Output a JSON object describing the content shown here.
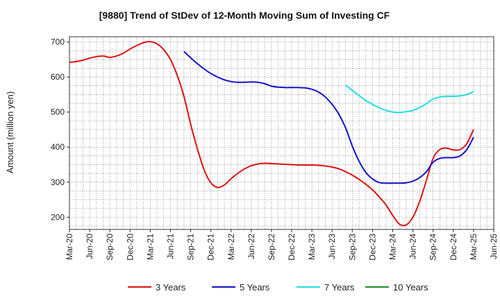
{
  "chart_data": {
    "type": "line",
    "title": "[9880]  Trend of StDev of 12-Month Moving Sum of Investing CF",
    "ylabel": "Amount (million yen)",
    "xlabel": "",
    "ylim": [
      165,
      715
    ],
    "yticks": [
      200,
      300,
      400,
      500,
      600,
      700
    ],
    "x_tick_labels": [
      "Mar-20",
      "Jun-20",
      "Sep-20",
      "Dec-20",
      "Mar-21",
      "Jun-21",
      "Sep-21",
      "Dec-21",
      "Mar-22",
      "Jun-22",
      "Sep-22",
      "Dec-22",
      "Mar-23",
      "Jun-23",
      "Sep-23",
      "Dec-23",
      "Mar-24",
      "Jun-24",
      "Sep-24",
      "Dec-24",
      "Mar-25",
      "Jun-25"
    ],
    "grid": true,
    "legend_position": "bottom",
    "series": [
      {
        "name": "3 Years",
        "color": "#dd1111",
        "points": [
          [
            "Mar-20",
            642
          ],
          [
            "Apr-20",
            644
          ],
          [
            "May-20",
            648
          ],
          [
            "Jun-20",
            654
          ],
          [
            "Jul-20",
            658
          ],
          [
            "Aug-20",
            660
          ],
          [
            "Sep-20",
            656
          ],
          [
            "Oct-20",
            660
          ],
          [
            "Nov-20",
            668
          ],
          [
            "Dec-20",
            680
          ],
          [
            "Jan-21",
            690
          ],
          [
            "Feb-21",
            698
          ],
          [
            "Mar-21",
            701
          ],
          [
            "Apr-21",
            695
          ],
          [
            "May-21",
            678
          ],
          [
            "Jun-21",
            650
          ],
          [
            "Jul-21",
            605
          ],
          [
            "Aug-21",
            545
          ],
          [
            "Sep-21",
            465
          ],
          [
            "Oct-21",
            395
          ],
          [
            "Nov-21",
            335
          ],
          [
            "Dec-21",
            298
          ],
          [
            "Jan-22",
            285
          ],
          [
            "Feb-22",
            292
          ],
          [
            "Mar-22",
            310
          ],
          [
            "Apr-22",
            325
          ],
          [
            "May-22",
            338
          ],
          [
            "Jun-22",
            347
          ],
          [
            "Jul-22",
            352
          ],
          [
            "Aug-22",
            354
          ],
          [
            "Sep-22",
            353
          ],
          [
            "Oct-22",
            352
          ],
          [
            "Nov-22",
            351
          ],
          [
            "Dec-22",
            350
          ],
          [
            "Jan-23",
            349
          ],
          [
            "Feb-23",
            349
          ],
          [
            "Mar-23",
            349
          ],
          [
            "Apr-23",
            348
          ],
          [
            "May-23",
            346
          ],
          [
            "Jun-23",
            343
          ],
          [
            "Jul-23",
            338
          ],
          [
            "Aug-23",
            330
          ],
          [
            "Sep-23",
            320
          ],
          [
            "Oct-23",
            308
          ],
          [
            "Nov-23",
            294
          ],
          [
            "Dec-23",
            278
          ],
          [
            "Jan-24",
            258
          ],
          [
            "Feb-24",
            235
          ],
          [
            "Mar-24",
            205
          ],
          [
            "Apr-24",
            180
          ],
          [
            "May-24",
            178
          ],
          [
            "Jun-24",
            200
          ],
          [
            "Jul-24",
            245
          ],
          [
            "Aug-24",
            305
          ],
          [
            "Sep-24",
            368
          ],
          [
            "Oct-24",
            393
          ],
          [
            "Nov-24",
            397
          ],
          [
            "Dec-24",
            392
          ],
          [
            "Jan-25",
            393
          ],
          [
            "Feb-25",
            410
          ],
          [
            "Mar-25",
            450
          ]
        ]
      },
      {
        "name": "5 Years",
        "color": "#1111cc",
        "points": [
          [
            "Aug-21",
            673
          ],
          [
            "Sep-21",
            655
          ],
          [
            "Oct-21",
            638
          ],
          [
            "Nov-21",
            623
          ],
          [
            "Dec-21",
            610
          ],
          [
            "Jan-22",
            600
          ],
          [
            "Feb-22",
            592
          ],
          [
            "Mar-22",
            587
          ],
          [
            "Apr-22",
            585
          ],
          [
            "May-22",
            585
          ],
          [
            "Jun-22",
            586
          ],
          [
            "Jul-22",
            585
          ],
          [
            "Aug-22",
            581
          ],
          [
            "Sep-22",
            574
          ],
          [
            "Oct-22",
            571
          ],
          [
            "Nov-22",
            570
          ],
          [
            "Dec-22",
            570
          ],
          [
            "Jan-23",
            570
          ],
          [
            "Feb-23",
            569
          ],
          [
            "Mar-23",
            565
          ],
          [
            "Apr-23",
            557
          ],
          [
            "May-23",
            543
          ],
          [
            "Jun-23",
            522
          ],
          [
            "Jul-23",
            494
          ],
          [
            "Aug-23",
            455
          ],
          [
            "Sep-23",
            403
          ],
          [
            "Oct-23",
            360
          ],
          [
            "Nov-23",
            328
          ],
          [
            "Dec-23",
            309
          ],
          [
            "Jan-24",
            299
          ],
          [
            "Feb-24",
            297
          ],
          [
            "Mar-24",
            297
          ],
          [
            "Apr-24",
            297
          ],
          [
            "May-24",
            298
          ],
          [
            "Jun-24",
            303
          ],
          [
            "Jul-24",
            313
          ],
          [
            "Aug-24",
            330
          ],
          [
            "Sep-24",
            357
          ],
          [
            "Oct-24",
            368
          ],
          [
            "Nov-24",
            370
          ],
          [
            "Dec-24",
            370
          ],
          [
            "Jan-25",
            375
          ],
          [
            "Feb-25",
            393
          ],
          [
            "Mar-25",
            428
          ]
        ]
      },
      {
        "name": "7 Years",
        "color": "#22dddd",
        "points": [
          [
            "Aug-23",
            577
          ],
          [
            "Sep-23",
            562
          ],
          [
            "Oct-23",
            547
          ],
          [
            "Nov-23",
            533
          ],
          [
            "Dec-23",
            522
          ],
          [
            "Jan-24",
            512
          ],
          [
            "Feb-24",
            505
          ],
          [
            "Mar-24",
            500
          ],
          [
            "Apr-24",
            499
          ],
          [
            "May-24",
            501
          ],
          [
            "Jun-24",
            505
          ],
          [
            "Jul-24",
            513
          ],
          [
            "Aug-24",
            524
          ],
          [
            "Sep-24",
            537
          ],
          [
            "Oct-24",
            543
          ],
          [
            "Nov-24",
            545
          ],
          [
            "Dec-24",
            545
          ],
          [
            "Jan-25",
            546
          ],
          [
            "Feb-25",
            550
          ],
          [
            "Mar-25",
            558
          ]
        ]
      },
      {
        "name": "10 Years",
        "color": "#228822",
        "points": []
      }
    ]
  }
}
